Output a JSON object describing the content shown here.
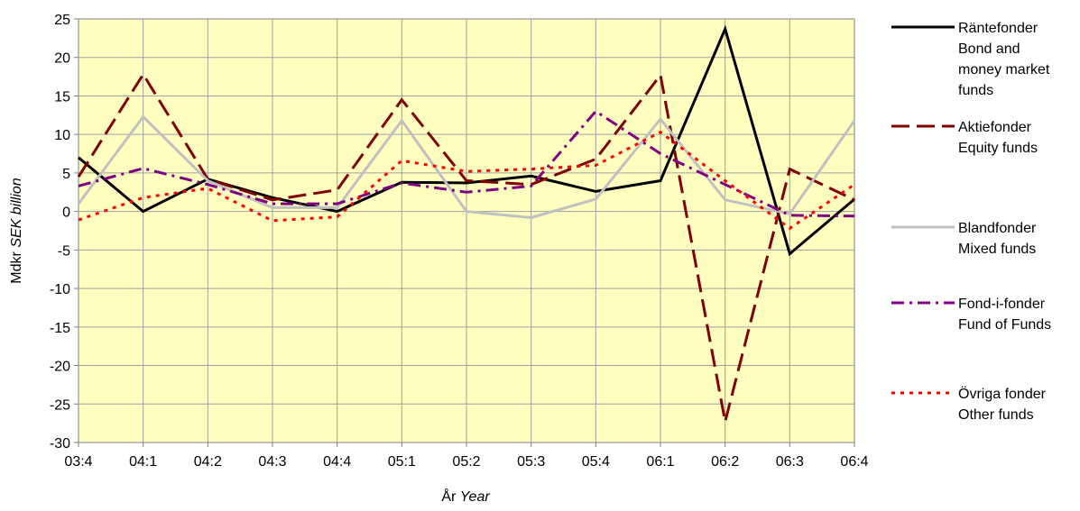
{
  "chart_data": {
    "type": "line",
    "categories": [
      "03:4",
      "04:1",
      "04:2",
      "04:3",
      "04:4",
      "05:1",
      "05:2",
      "05:3",
      "05:4",
      "06:1",
      "06:2",
      "06:3",
      "06:4"
    ],
    "xlabel": {
      "main": "År",
      "italic": "Year"
    },
    "ylabel": {
      "main": "Mdkr",
      "italic": "SEK billion"
    },
    "ylim": [
      -30,
      25
    ],
    "yticks": [
      25,
      20,
      15,
      10,
      5,
      0,
      -5,
      -10,
      -15,
      -20,
      -25,
      -30
    ],
    "grid": true,
    "plot_background": "#FFFFC0",
    "legend_position": "right",
    "series": [
      {
        "name": "Räntefonder",
        "name_en": "Bond and money market funds",
        "legend_lines": [
          "Räntefonder",
          "Bond and",
          "money market",
          "funds"
        ],
        "color": "#000000",
        "style": "solid",
        "values": [
          7,
          0,
          4.2,
          1.8,
          0,
          3.8,
          3.7,
          4.6,
          2.6,
          4,
          23.7,
          -5.5,
          1.6
        ]
      },
      {
        "name": "Aktiefonder",
        "name_en": "Equity funds",
        "legend_lines": [
          "Aktiefonder",
          "Equity funds"
        ],
        "color": "#800000",
        "style": "long-dash",
        "values": [
          4.5,
          17.8,
          4.2,
          1.5,
          2.8,
          14.5,
          4,
          3.5,
          6.8,
          17.7,
          -27.3,
          5.5,
          1.5
        ]
      },
      {
        "name": "Blandfonder",
        "name_en": "Mixed funds",
        "legend_lines": [
          "Blandfonder",
          "Mixed funds"
        ],
        "color": "#C0C0C0",
        "style": "solid",
        "values": [
          1,
          12.3,
          4,
          0.5,
          0.5,
          11.8,
          0,
          -0.8,
          1.6,
          12,
          1.5,
          -0.3,
          11.8
        ]
      },
      {
        "name": "Fond-i-fonder",
        "name_en": "Fund of Funds",
        "legend_lines": [
          "Fond-i-fonder",
          "Fund of Funds"
        ],
        "color": "#800080",
        "style": "dash-dot",
        "values": [
          3.3,
          5.6,
          3.5,
          1,
          1,
          3.7,
          2.5,
          3.3,
          13,
          7.5,
          3.5,
          -0.5,
          -0.6
        ]
      },
      {
        "name": "Övriga fonder",
        "name_en": "Other funds",
        "legend_lines": [
          "Övriga fonder",
          "Other funds"
        ],
        "color": "#FF0000",
        "style": "dotted",
        "values": [
          -1.1,
          1.8,
          3,
          -1.2,
          -0.7,
          6.6,
          5.2,
          5.5,
          6,
          10.3,
          4,
          -2.2,
          3.5
        ]
      }
    ]
  }
}
